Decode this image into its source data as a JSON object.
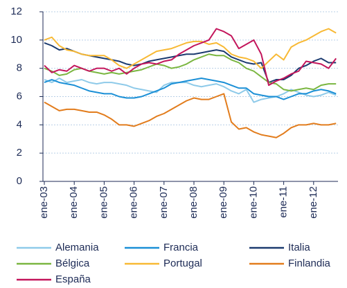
{
  "chart_data": {
    "type": "line",
    "categories": [
      "ene-03",
      null,
      null,
      null,
      "ene-04",
      null,
      null,
      null,
      "ene-05",
      null,
      null,
      null,
      "ene-06",
      null,
      null,
      null,
      "ene-07",
      null,
      null,
      null,
      "ene-08",
      null,
      null,
      null,
      "ene-09",
      null,
      null,
      null,
      "ene-10",
      null,
      null,
      null,
      "ene-11",
      null,
      null,
      null,
      "ene-12",
      null,
      null,
      null
    ],
    "ylim": [
      0,
      12
    ],
    "yticks": [
      0,
      2,
      4,
      6,
      8,
      10,
      12
    ],
    "grid": true,
    "series": [
      {
        "name": "Alemania",
        "color": "#8ecae9",
        "values": [
          7.2,
          7.0,
          7.3,
          7.0,
          7.1,
          7.2,
          7.0,
          6.9,
          7.0,
          7.0,
          6.9,
          6.8,
          6.6,
          6.5,
          6.4,
          6.3,
          6.8,
          7.0,
          7.0,
          7.0,
          6.8,
          6.7,
          6.8,
          6.9,
          6.7,
          6.4,
          6.2,
          6.5,
          5.6,
          5.8,
          5.9,
          6.0,
          6.2,
          6.5,
          6.3,
          6.1,
          6.0,
          6.1,
          6.3,
          6.1
        ]
      },
      {
        "name": "Francia",
        "color": "#1a8fd6",
        "values": [
          7.0,
          7.2,
          7.0,
          6.9,
          6.8,
          6.6,
          6.4,
          6.3,
          6.2,
          6.2,
          6.0,
          5.9,
          5.9,
          6.0,
          6.2,
          6.4,
          6.6,
          6.9,
          7.0,
          7.1,
          7.2,
          7.3,
          7.2,
          7.1,
          7.0,
          6.8,
          6.6,
          6.6,
          6.2,
          6.1,
          6.0,
          6.0,
          5.8,
          6.0,
          6.2,
          6.2,
          6.4,
          6.5,
          6.4,
          6.2
        ]
      },
      {
        "name": "Italia",
        "color": "#1b3a6f",
        "values": [
          9.8,
          9.6,
          9.3,
          9.4,
          9.2,
          9.0,
          8.9,
          8.8,
          8.7,
          8.6,
          8.5,
          8.3,
          8.2,
          8.3,
          8.5,
          8.6,
          8.7,
          8.8,
          8.9,
          9.0,
          9.0,
          9.1,
          9.2,
          9.3,
          9.2,
          8.8,
          8.6,
          8.4,
          8.3,
          8.4,
          7.0,
          7.2,
          7.2,
          7.5,
          8.0,
          8.2,
          8.5,
          8.7,
          8.4,
          8.4
        ]
      },
      {
        "name": "Bélgica",
        "color": "#7ab640",
        "values": [
          8.0,
          7.8,
          7.5,
          7.6,
          7.9,
          8.0,
          7.8,
          7.7,
          7.6,
          7.7,
          7.6,
          7.7,
          7.8,
          7.9,
          8.1,
          8.3,
          8.2,
          8.0,
          8.1,
          8.3,
          8.6,
          8.8,
          9.0,
          8.9,
          8.9,
          8.6,
          8.4,
          8.0,
          7.8,
          7.4,
          7.0,
          6.9,
          6.5,
          6.4,
          6.5,
          6.6,
          6.5,
          6.8,
          6.9,
          6.9
        ]
      },
      {
        "name": "Portugal",
        "color": "#f8b934",
        "values": [
          10.0,
          10.2,
          9.6,
          9.3,
          9.2,
          9.0,
          8.9,
          8.9,
          8.9,
          8.6,
          8.2,
          8.0,
          8.3,
          8.6,
          8.9,
          9.2,
          9.3,
          9.4,
          9.6,
          9.8,
          9.9,
          9.9,
          9.7,
          9.8,
          9.5,
          9.0,
          8.8,
          8.7,
          8.5,
          8.0,
          8.5,
          9.0,
          8.6,
          9.5,
          9.8,
          10.0,
          10.3,
          10.6,
          10.8,
          10.5
        ]
      },
      {
        "name": "Finlandia",
        "color": "#e27c1c",
        "values": [
          5.6,
          5.3,
          5.0,
          5.1,
          5.1,
          5.0,
          4.9,
          4.9,
          4.7,
          4.4,
          4.0,
          4.0,
          3.9,
          4.1,
          4.3,
          4.6,
          4.8,
          5.1,
          5.4,
          5.7,
          5.9,
          5.8,
          5.8,
          6.0,
          6.2,
          4.2,
          3.7,
          3.8,
          3.5,
          3.3,
          3.2,
          3.1,
          3.4,
          3.8,
          4.0,
          4.0,
          4.1,
          4.0,
          4.0,
          4.1
        ]
      },
      {
        "name": "España",
        "color": "#c3155b",
        "values": [
          8.2,
          7.7,
          7.9,
          7.8,
          8.2,
          8.0,
          7.8,
          8.0,
          8.0,
          7.8,
          8.0,
          7.6,
          8.0,
          8.3,
          8.4,
          8.3,
          8.5,
          8.6,
          9.0,
          9.3,
          9.6,
          9.8,
          10.0,
          10.8,
          10.6,
          10.3,
          9.4,
          9.7,
          10.0,
          9.0,
          6.8,
          7.1,
          7.3,
          7.6,
          7.8,
          8.5,
          8.4,
          8.3,
          8.0,
          8.7
        ]
      }
    ]
  }
}
